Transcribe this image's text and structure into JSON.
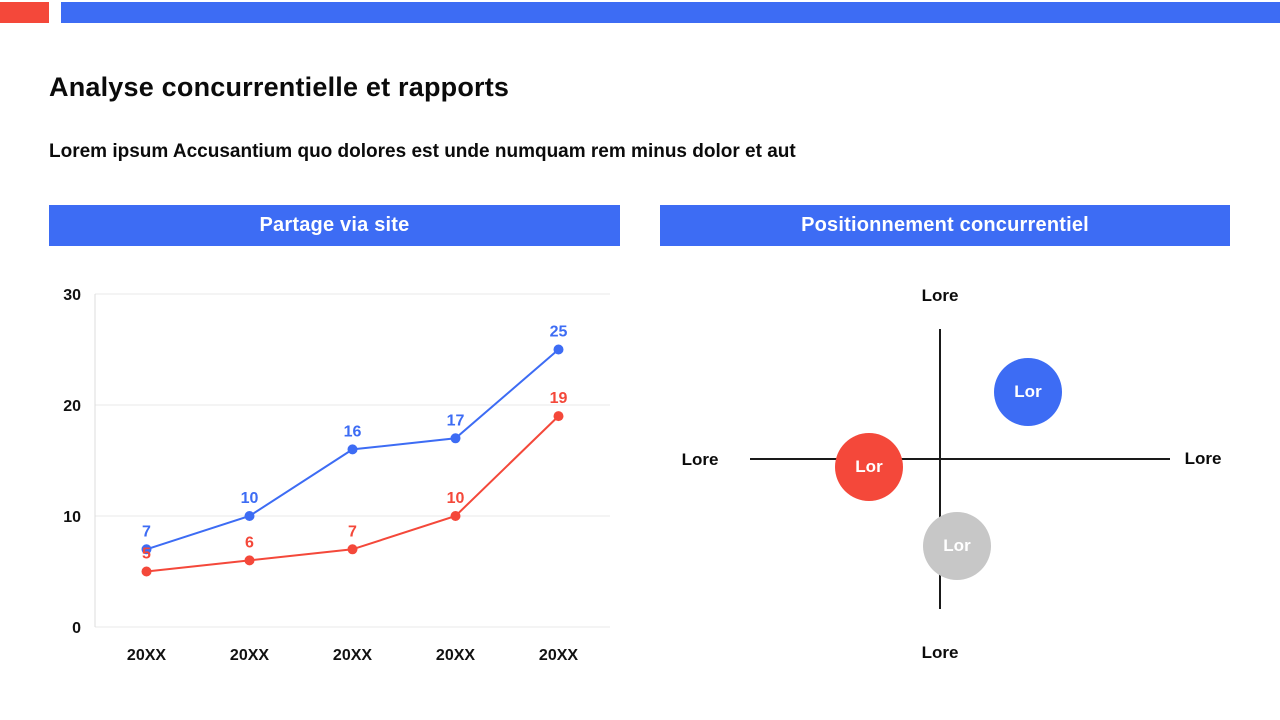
{
  "theme": {
    "accent_blue": "#3d6cf4",
    "accent_red": "#f4483a",
    "neutral_gray": "#c7c7c7",
    "grid_color": "#e8e8e8",
    "axis_color": "#1a1a1a",
    "text_color": "#111111"
  },
  "top_bar": {
    "red_block_color": "#f4483a",
    "blue_bar_color": "#3d6cf4"
  },
  "page": {
    "title": "Analyse concurrentielle et rapports",
    "subtitle": "Lorem ipsum Accusantium quo dolores est unde numquam rem minus dolor et aut"
  },
  "chart_data": [
    {
      "type": "line",
      "title": "Partage via site",
      "categories": [
        "20XX",
        "20XX",
        "20XX",
        "20XX",
        "20XX"
      ],
      "series": [
        {
          "name": "series-1",
          "color": "#3d6cf4",
          "values": [
            7,
            10,
            16,
            17,
            25
          ]
        },
        {
          "name": "series-2",
          "color": "#f4483a",
          "values": [
            5,
            6,
            7,
            10,
            19
          ]
        }
      ],
      "xlabel": "",
      "ylabel": "",
      "ylim": [
        0,
        30
      ],
      "yticks": [
        0,
        10,
        20,
        30
      ],
      "grid": true,
      "legend": "none",
      "data_labels": true
    },
    {
      "type": "scatter",
      "title": "Positionnement concurrentiel",
      "axis_labels": {
        "top": "Lore",
        "bottom": "Lore",
        "left": "Lore",
        "right": "Lore"
      },
      "points": [
        {
          "label": "Lor",
          "color": "#3d6cf4",
          "x": 368,
          "y": 134,
          "r": 34,
          "quadrant": "top-right"
        },
        {
          "label": "Lor",
          "color": "#f4483a",
          "x": 209,
          "y": 209,
          "r": 34,
          "quadrant": "middle-left"
        },
        {
          "label": "Lor",
          "color": "#c7c7c7",
          "x": 297,
          "y": 288,
          "r": 34,
          "quadrant": "bottom-center"
        }
      ]
    }
  ]
}
